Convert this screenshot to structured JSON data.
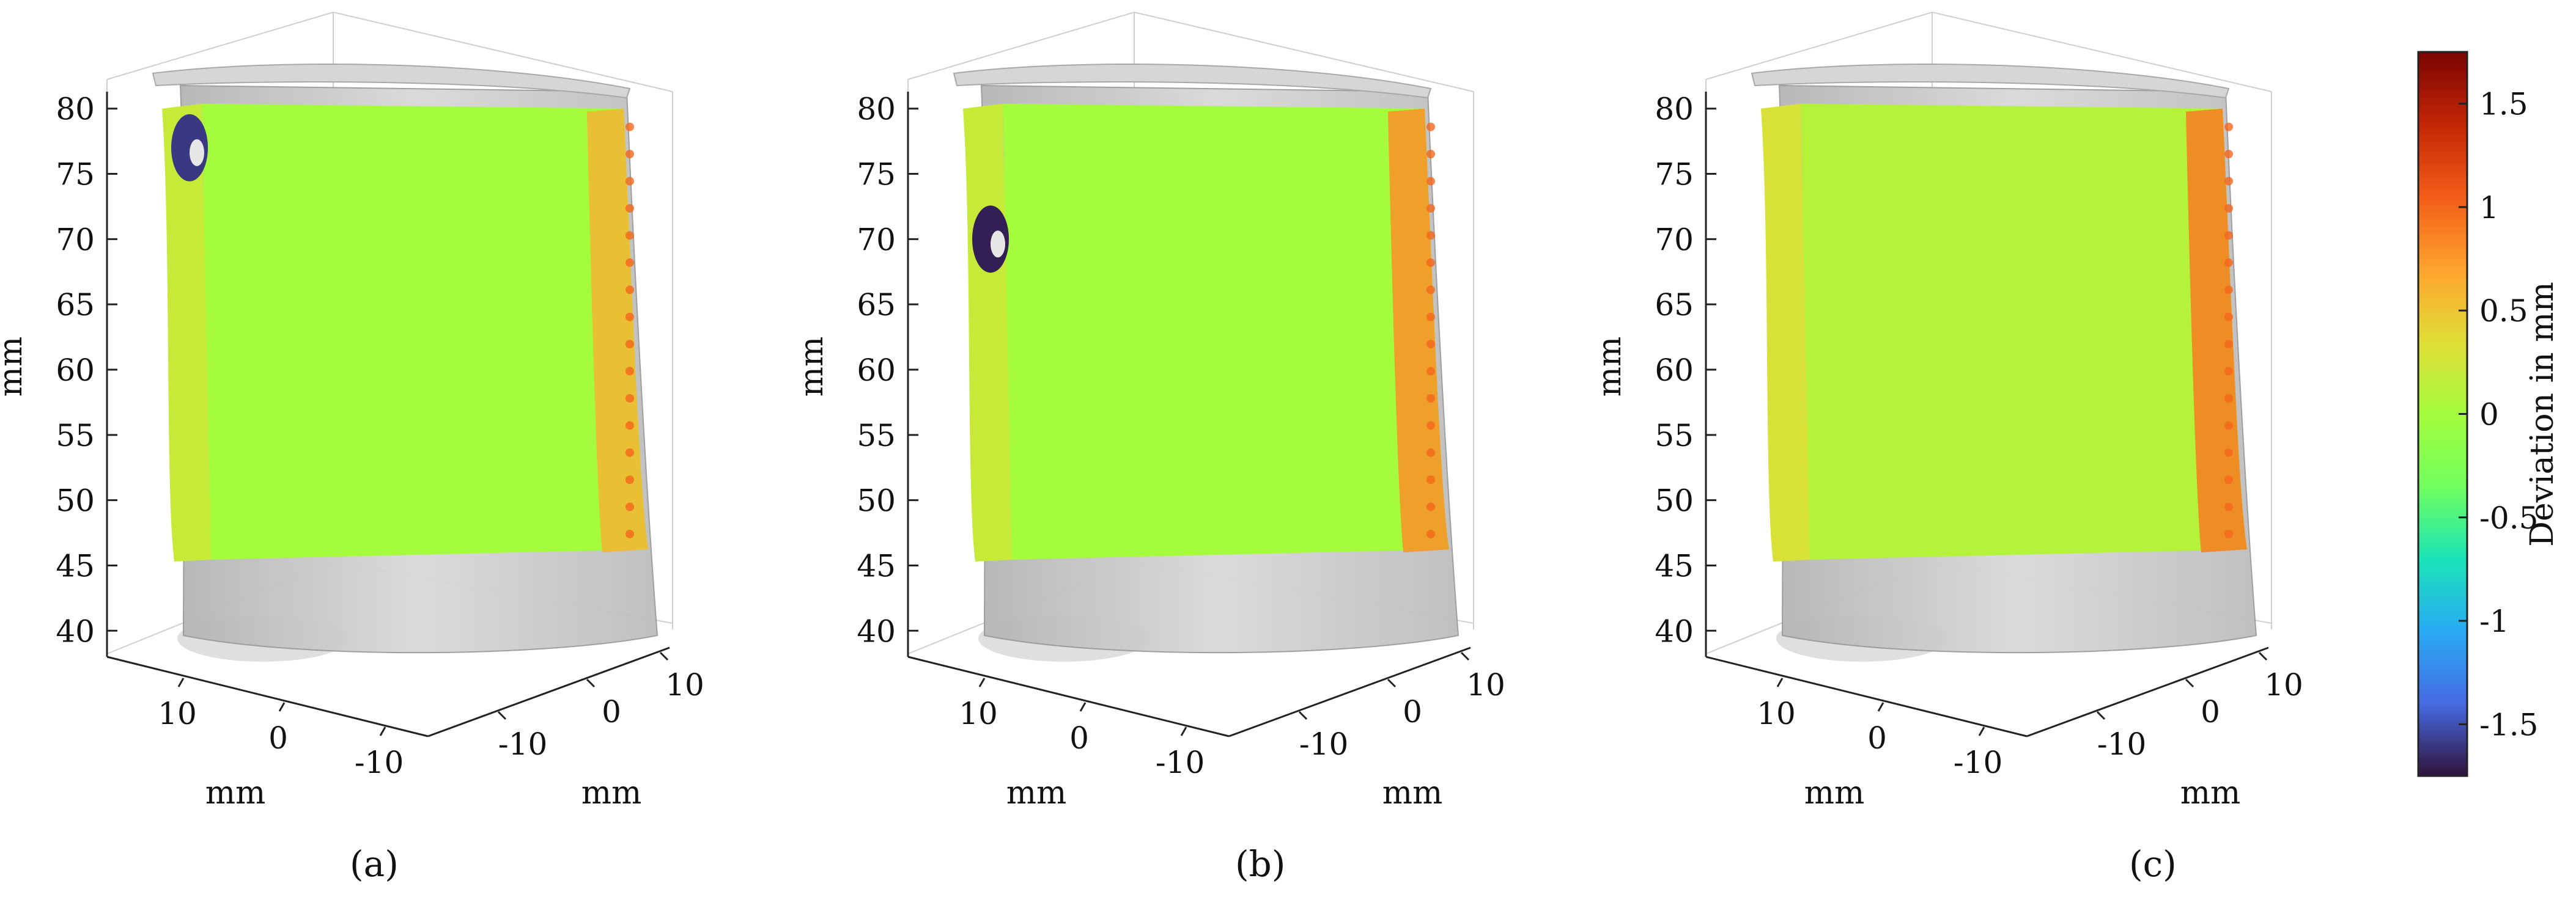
{
  "chart_data": [
    {
      "type": "surface-3d",
      "panel": "a",
      "panel_label": "(a)",
      "z_ticks": [
        "40",
        "45",
        "50",
        "55",
        "60",
        "65",
        "70",
        "75",
        "80"
      ],
      "z_label": "mm",
      "x_ticks": [
        "10",
        "0",
        "-10"
      ],
      "x_label": "mm",
      "y_ticks": [
        "-10",
        "0",
        "10"
      ],
      "y_label": "mm",
      "zlim": [
        38,
        82
      ],
      "deviation_features": [
        {
          "name": "main",
          "value": 0.0
        },
        {
          "name": "trailing-edge",
          "value": 0.6
        },
        {
          "name": "hole",
          "value": -1.6
        },
        {
          "name": "leading-strip",
          "value": 0.2
        }
      ]
    },
    {
      "type": "surface-3d",
      "panel": "b",
      "panel_label": "(b)",
      "z_ticks": [
        "40",
        "45",
        "50",
        "55",
        "60",
        "65",
        "70",
        "75",
        "80"
      ],
      "z_label": "mm",
      "x_ticks": [
        "10",
        "0",
        "-10"
      ],
      "x_label": "mm",
      "y_ticks": [
        "-10",
        "0",
        "10"
      ],
      "y_label": "mm",
      "zlim": [
        38,
        82
      ],
      "deviation_features": [
        {
          "name": "main",
          "value": 0.0
        },
        {
          "name": "trailing-edge",
          "value": 0.8
        },
        {
          "name": "hole",
          "value": -1.7
        },
        {
          "name": "leading-strip",
          "value": 0.2
        }
      ]
    },
    {
      "type": "surface-3d",
      "panel": "c",
      "panel_label": "(c)",
      "z_ticks": [
        "40",
        "45",
        "50",
        "55",
        "60",
        "65",
        "70",
        "75",
        "80"
      ],
      "z_label": "mm",
      "x_ticks": [
        "10",
        "0",
        "-10"
      ],
      "x_label": "mm",
      "y_ticks": [
        "-10",
        "0",
        "10"
      ],
      "y_label": "mm",
      "zlim": [
        38,
        82
      ],
      "deviation_features": [
        {
          "name": "main",
          "value": 0.1
        },
        {
          "name": "trailing-edge",
          "value": 0.9
        },
        {
          "name": "leading-strip",
          "value": 0.3
        }
      ]
    }
  ],
  "colorbar": {
    "label": "Deviation in mm",
    "range": [
      -1.75,
      1.75
    ],
    "ticks": [
      "1.5",
      "1",
      "0.5",
      "0",
      "-0.5",
      "-1",
      "-1.5"
    ],
    "tick_values": [
      1.5,
      1,
      0.5,
      0,
      -0.5,
      -1,
      -1.5
    ],
    "colormap": "turbo"
  }
}
